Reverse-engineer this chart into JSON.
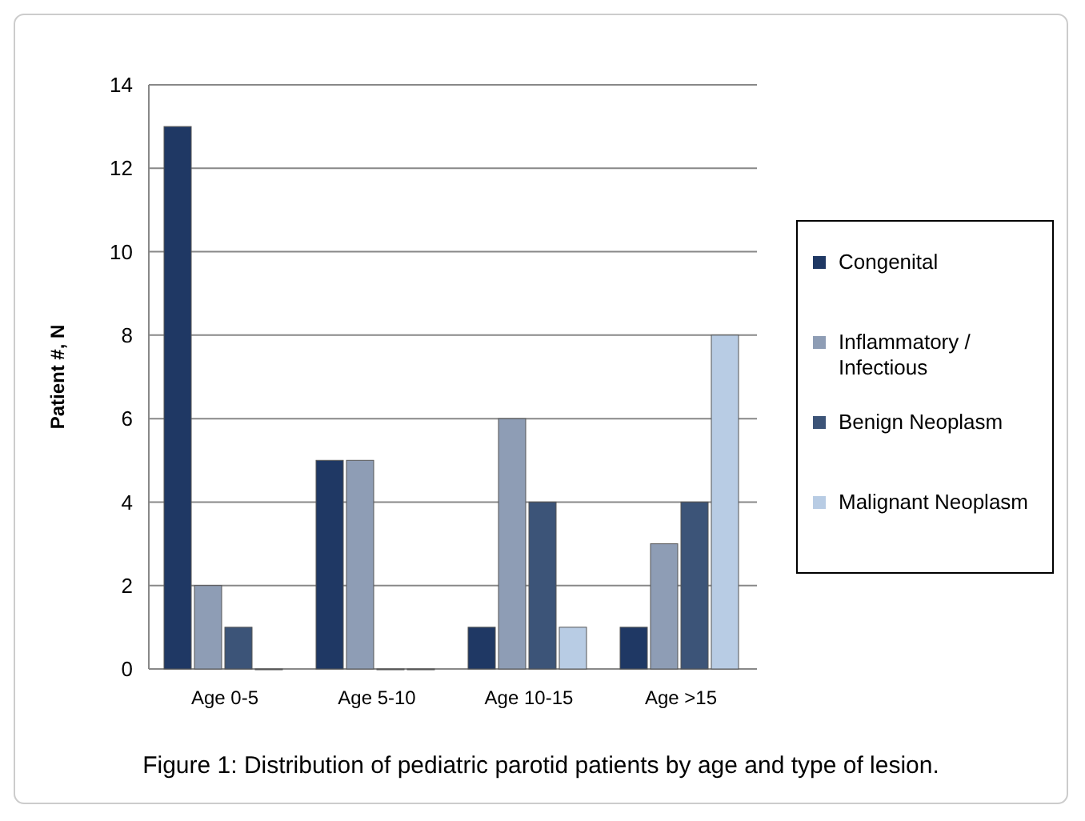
{
  "chart_data": {
    "type": "bar",
    "ylabel": "Patient #, N",
    "categories": [
      "Age 0-5",
      "Age 5-10",
      "Age 10-15",
      "Age >15"
    ],
    "series": [
      {
        "name": "Congenital",
        "color": "#1f3864",
        "values": [
          13,
          5,
          1,
          1
        ]
      },
      {
        "name": "Inflammatory / Infectious",
        "color": "#8e9db5",
        "values": [
          2,
          5,
          6,
          3
        ]
      },
      {
        "name": "Benign Neoplasm",
        "color": "#3c5478",
        "values": [
          1,
          0,
          4,
          4
        ]
      },
      {
        "name": "Malignant Neoplasm",
        "color": "#b8cce4",
        "values": [
          0,
          0,
          1,
          8
        ]
      }
    ],
    "ylim": [
      0,
      14
    ],
    "yticks": [
      0,
      2,
      4,
      6,
      8,
      10,
      12,
      14
    ],
    "grid": "y",
    "legend": "right",
    "annotations": [
      "Figure 1: Distribution of pediatric parotid patients by age and type of lesion."
    ]
  }
}
